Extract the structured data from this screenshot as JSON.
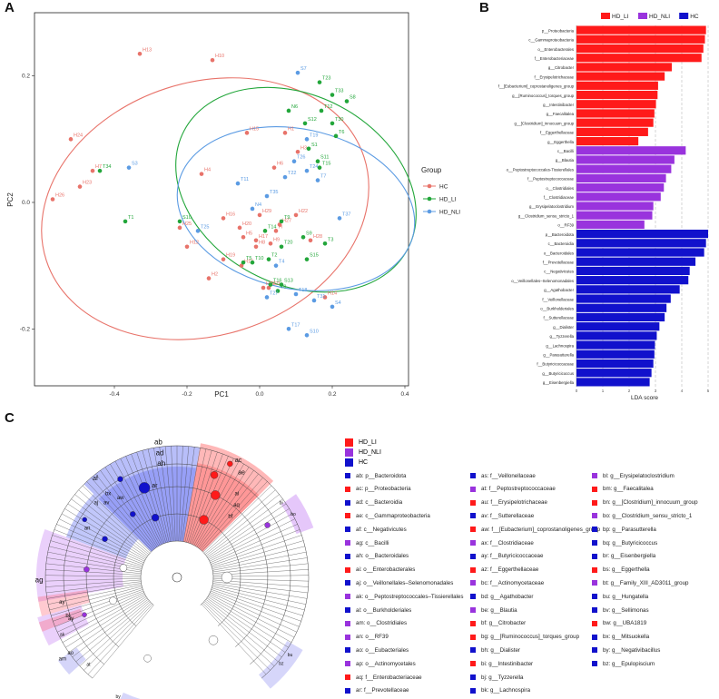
{
  "panels": {
    "a": "A",
    "b": "B",
    "c": "C"
  },
  "colors": {
    "HC": "#e8736a",
    "HD_LI": "#22a63a",
    "HD_NLI": "#5b9be3",
    "bar_LI": "#ff1a1a",
    "bar_NLI": "#9933dd",
    "bar_HC": "#1111cc"
  },
  "pca": {
    "xlabel": "PC1",
    "ylabel": "PC2",
    "xticks": [
      "-0.4",
      "-0.2",
      "0.0",
      "0.2",
      "0.4"
    ],
    "yticks": [
      "-0.2",
      "0.0",
      "0.2"
    ],
    "legend_title": "Group",
    "legend_items": [
      "HC",
      "HD_LI",
      "HD_NLI"
    ]
  },
  "chart_data": [
    {
      "type": "scatter",
      "title": "",
      "xlabel": "PC1",
      "ylabel": "PC2",
      "xlim": [
        -0.62,
        0.41
      ],
      "ylim": [
        -0.29,
        0.3
      ],
      "series": [
        {
          "name": "HC",
          "points": [
            {
              "label": "H13",
              "x": -0.33,
              "y": 0.235
            },
            {
              "label": "H10",
              "x": -0.13,
              "y": 0.225
            },
            {
              "label": "H24",
              "x": -0.52,
              "y": 0.1
            },
            {
              "label": "H7",
              "x": -0.46,
              "y": 0.05
            },
            {
              "label": "H26",
              "x": -0.57,
              "y": 0.005
            },
            {
              "label": "H23",
              "x": -0.495,
              "y": 0.025
            },
            {
              "label": "H4",
              "x": -0.16,
              "y": 0.045
            },
            {
              "label": "H15",
              "x": -0.035,
              "y": 0.11
            },
            {
              "label": "H1",
              "x": 0.07,
              "y": 0.11
            },
            {
              "label": "H3",
              "x": 0.105,
              "y": 0.08
            },
            {
              "label": "H6",
              "x": 0.04,
              "y": 0.055
            },
            {
              "label": "H25",
              "x": -0.22,
              "y": -0.04
            },
            {
              "label": "H12",
              "x": -0.2,
              "y": -0.07
            },
            {
              "label": "H19",
              "x": -0.1,
              "y": -0.09
            },
            {
              "label": "H16",
              "x": -0.1,
              "y": -0.025
            },
            {
              "label": "H20",
              "x": -0.055,
              "y": -0.04
            },
            {
              "label": "H5",
              "x": -0.045,
              "y": -0.055
            },
            {
              "label": "H17",
              "x": -0.01,
              "y": -0.06
            },
            {
              "label": "H29",
              "x": 0.0,
              "y": -0.02
            },
            {
              "label": "H27",
              "x": 0.055,
              "y": -0.035
            },
            {
              "label": "H8",
              "x": -0.01,
              "y": -0.07
            },
            {
              "label": "H9",
              "x": 0.03,
              "y": -0.065
            },
            {
              "label": "H22",
              "x": 0.1,
              "y": -0.02
            },
            {
              "label": "H28",
              "x": 0.14,
              "y": -0.06
            },
            {
              "label": "H18",
              "x": -0.05,
              "y": -0.1
            },
            {
              "label": "H2",
              "x": -0.14,
              "y": -0.12
            },
            {
              "label": "H11",
              "x": 0.01,
              "y": -0.135
            },
            {
              "label": "H21",
              "x": 0.025,
              "y": -0.135
            },
            {
              "label": "H14",
              "x": 0.18,
              "y": -0.15
            },
            {
              "label": "H",
              "x": 0.045,
              "y": -0.045
            }
          ]
        },
        {
          "name": "HD_LI",
          "points": [
            {
              "label": "T23",
              "x": 0.165,
              "y": 0.19
            },
            {
              "label": "T33",
              "x": 0.2,
              "y": 0.17
            },
            {
              "label": "S8",
              "x": 0.24,
              "y": 0.16
            },
            {
              "label": "N6",
              "x": 0.08,
              "y": 0.145
            },
            {
              "label": "T12",
              "x": 0.17,
              "y": 0.145
            },
            {
              "label": "S12",
              "x": 0.125,
              "y": 0.125
            },
            {
              "label": "T30",
              "x": 0.2,
              "y": 0.125
            },
            {
              "label": "T6",
              "x": 0.21,
              "y": 0.105
            },
            {
              "label": "S1",
              "x": 0.135,
              "y": 0.085
            },
            {
              "label": "S11",
              "x": 0.16,
              "y": 0.065
            },
            {
              "label": "T15",
              "x": 0.165,
              "y": 0.055
            },
            {
              "label": "T34",
              "x": -0.44,
              "y": 0.05
            },
            {
              "label": "T1",
              "x": -0.37,
              "y": -0.03
            },
            {
              "label": "S10",
              "x": -0.22,
              "y": -0.03
            },
            {
              "label": "T14",
              "x": 0.015,
              "y": -0.045
            },
            {
              "label": "T9",
              "x": 0.06,
              "y": -0.03
            },
            {
              "label": "T20",
              "x": 0.06,
              "y": -0.07
            },
            {
              "label": "S9",
              "x": 0.12,
              "y": -0.055
            },
            {
              "label": "T3",
              "x": 0.18,
              "y": -0.065
            },
            {
              "label": "T10",
              "x": -0.02,
              "y": -0.095
            },
            {
              "label": "T2",
              "x": 0.025,
              "y": -0.09
            },
            {
              "label": "S15",
              "x": 0.13,
              "y": -0.09
            },
            {
              "label": "T16",
              "x": 0.03,
              "y": -0.13
            },
            {
              "label": "S13",
              "x": 0.06,
              "y": -0.13
            },
            {
              "label": "T8",
              "x": 0.05,
              "y": -0.14
            },
            {
              "label": "T5",
              "x": -0.045,
              "y": -0.095
            }
          ]
        },
        {
          "name": "HD_NLI",
          "points": [
            {
              "label": "S7",
              "x": 0.105,
              "y": 0.205
            },
            {
              "label": "T19",
              "x": 0.13,
              "y": 0.1
            },
            {
              "label": "S3",
              "x": -0.36,
              "y": 0.055
            },
            {
              "label": "T26",
              "x": 0.095,
              "y": 0.065
            },
            {
              "label": "T24",
              "x": 0.13,
              "y": 0.05
            },
            {
              "label": "T22",
              "x": 0.07,
              "y": 0.04
            },
            {
              "label": "T7",
              "x": 0.16,
              "y": 0.035
            },
            {
              "label": "T11",
              "x": -0.06,
              "y": 0.03
            },
            {
              "label": "N4",
              "x": -0.02,
              "y": -0.01
            },
            {
              "label": "T35",
              "x": 0.02,
              "y": 0.01
            },
            {
              "label": "T37",
              "x": 0.22,
              "y": -0.025
            },
            {
              "label": "T25",
              "x": -0.17,
              "y": -0.045
            },
            {
              "label": "T4",
              "x": 0.045,
              "y": -0.1
            },
            {
              "label": "T27",
              "x": 0.02,
              "y": -0.15
            },
            {
              "label": "T18",
              "x": 0.1,
              "y": -0.145
            },
            {
              "label": "T31",
              "x": 0.15,
              "y": -0.155
            },
            {
              "label": "S4",
              "x": 0.2,
              "y": -0.165
            },
            {
              "label": "T17",
              "x": 0.08,
              "y": -0.2
            },
            {
              "label": "S10",
              "x": 0.13,
              "y": -0.21
            }
          ]
        }
      ]
    },
    {
      "type": "bar",
      "orientation": "horizontal",
      "title": "",
      "xlabel": "LDA score",
      "xlim": [
        0,
        5
      ],
      "xticks": [
        "0",
        "1",
        "2",
        "3",
        "4",
        "5"
      ],
      "legend": [
        "HD_LI",
        "HD_NLI",
        "HC"
      ],
      "categories": [
        "p__Proteobacteria",
        "c__Gammaproteobacteria",
        "o__Enterobacterales",
        "f__Enterobacteriaceae",
        "g__Citrobacter",
        "f__Erysipelotrichaceae",
        "f__[Eubacterium]_coprostanoligenes_group",
        "g__[Ruminococcus]_torques_group",
        "g__Intestinibacter",
        "g__Faecalitalea",
        "g__[Clostridium]_innocuum_group",
        "f__Eggerthellaceae",
        "g__Eggerthella",
        "c__Bacilli",
        "g__Blautia",
        "o__Peptostreptococcales-Tissierellales",
        "f__Peptostreptococcaceae",
        "o__Clostridiales",
        "f__Clostridiaceae",
        "g__Erysipelatoclostridium",
        "g__Clostridium_sensu_stricto_1",
        "o__RF39",
        "p__Bacteroidota",
        "c__Bacteroidia",
        "o__Bacteroidales",
        "f__Prevotellaceae",
        "c__Negativicutes",
        "o__Veillonellales–Selenomonadales",
        "g__Agathobacter",
        "f__Veillonellaceae",
        "o__Burkholderiales",
        "f__Sutterellaceae",
        "g__Dialister",
        "g__Tyzzerella",
        "g__Lachnospira",
        "g__Parasutterella",
        "f__Butyricicoccaceae",
        "g__Butyricicoccus",
        "g__Eisenbergiella"
      ],
      "groups": [
        "HD_LI",
        "HD_LI",
        "HD_LI",
        "HD_LI",
        "HD_LI",
        "HD_LI",
        "HD_LI",
        "HD_LI",
        "HD_LI",
        "HD_LI",
        "HD_LI",
        "HD_LI",
        "HD_LI",
        "HD_NLI",
        "HD_NLI",
        "HD_NLI",
        "HD_NLI",
        "HD_NLI",
        "HD_NLI",
        "HD_NLI",
        "HD_NLI",
        "HD_NLI",
        "HC",
        "HC",
        "HC",
        "HC",
        "HC",
        "HC",
        "HC",
        "HC",
        "HC",
        "HC",
        "HC",
        "HC",
        "HC",
        "HC",
        "HC",
        "HC",
        "HC"
      ],
      "values": [
        4.92,
        4.88,
        4.82,
        4.75,
        3.62,
        3.35,
        3.1,
        3.08,
        3.02,
        2.96,
        2.92,
        2.72,
        2.35,
        4.15,
        3.72,
        3.6,
        3.4,
        3.32,
        3.2,
        2.92,
        2.88,
        2.58,
        5.0,
        4.92,
        4.85,
        4.52,
        4.3,
        4.25,
        3.92,
        3.58,
        3.42,
        3.35,
        3.15,
        3.05,
        2.98,
        2.96,
        2.92,
        2.85,
        2.78
      ]
    }
  ],
  "cladogram": {
    "legend": [
      "HD_LI",
      "HD_NLI",
      "HC"
    ],
    "ring_labels": [
      "ab",
      "ad",
      "ah",
      "ac",
      "ae",
      "ai",
      "aq",
      "bf",
      "af",
      "aj",
      "av",
      "aw",
      "ar",
      "bi",
      "bo",
      "an",
      "bx",
      "ag",
      "ay",
      "bi",
      "ay",
      "am",
      "ao",
      "ak",
      "at",
      "bz",
      "bu",
      "bv",
      "bw",
      "by"
    ],
    "items": [
      {
        "code": "ab",
        "name": "p__Bacteroidota",
        "group": "HC"
      },
      {
        "code": "ac",
        "name": "p__Proteobacteria",
        "group": "HD_LI"
      },
      {
        "code": "ad",
        "name": "c__Bacteroidia",
        "group": "HC"
      },
      {
        "code": "ae",
        "name": "c__Gammaproteobacteria",
        "group": "HD_LI"
      },
      {
        "code": "af",
        "name": "c__Negativicutes",
        "group": "HC"
      },
      {
        "code": "ag",
        "name": "c__Bacilli",
        "group": "HD_NLI"
      },
      {
        "code": "ah",
        "name": "o__Bacteroidales",
        "group": "HC"
      },
      {
        "code": "ai",
        "name": "o__Enterobacterales",
        "group": "HD_LI"
      },
      {
        "code": "aj",
        "name": "o__Veillonellales–Selenomonadales",
        "group": "HC"
      },
      {
        "code": "ak",
        "name": "o__Peptostreptococcales–Tissierellales",
        "group": "HD_NLI"
      },
      {
        "code": "al",
        "name": "o__Burkholderiales",
        "group": "HC"
      },
      {
        "code": "am",
        "name": "o__Clostridiales",
        "group": "HD_NLI"
      },
      {
        "code": "an",
        "name": "o__RF39",
        "group": "HD_NLI"
      },
      {
        "code": "ao",
        "name": "o__Eubacteriales",
        "group": "HC"
      },
      {
        "code": "ap",
        "name": "o__Actinomycetales",
        "group": "HD_NLI"
      },
      {
        "code": "aq",
        "name": "f__Enterobacteriaceae",
        "group": "HD_LI"
      },
      {
        "code": "ar",
        "name": "f__Prevotellaceae",
        "group": "HC"
      },
      {
        "code": "as",
        "name": "f__Veillonellaceae",
        "group": "HC"
      },
      {
        "code": "at",
        "name": "f__Peptostreptococcaceae",
        "group": "HD_NLI"
      },
      {
        "code": "au",
        "name": "f__Erysipelotrichaceae",
        "group": "HD_LI"
      },
      {
        "code": "av",
        "name": "f__Sutterellaceae",
        "group": "HC"
      },
      {
        "code": "aw",
        "name": "f__[Eubacterium]_coprostanoligenes_group",
        "group": "HD_LI"
      },
      {
        "code": "ax",
        "name": "f__Clostridiaceae",
        "group": "HD_NLI"
      },
      {
        "code": "ay",
        "name": "f__Butyricicoccaceae",
        "group": "HC"
      },
      {
        "code": "az",
        "name": "f__Eggerthellaceae",
        "group": "HD_LI"
      },
      {
        "code": "bc",
        "name": "f__Actinomycetaceae",
        "group": "HD_NLI"
      },
      {
        "code": "bd",
        "name": "g__Agathobacter",
        "group": "HC"
      },
      {
        "code": "be",
        "name": "g__Blautia",
        "group": "HD_NLI"
      },
      {
        "code": "bf",
        "name": "g__Citrobacter",
        "group": "HD_LI"
      },
      {
        "code": "bg",
        "name": "g__[Ruminococcus]_torques_group",
        "group": "HD_LI"
      },
      {
        "code": "bh",
        "name": "g__Dialister",
        "group": "HC"
      },
      {
        "code": "bi",
        "name": "g__Intestinibacter",
        "group": "HD_LI"
      },
      {
        "code": "bj",
        "name": "g__Tyzzerella",
        "group": "HC"
      },
      {
        "code": "bk",
        "name": "g__Lachnospira",
        "group": "HC"
      },
      {
        "code": "bl",
        "name": "g__Erysipelatoclostridium",
        "group": "HD_NLI"
      },
      {
        "code": "bm",
        "name": "g__Faecalitalea",
        "group": "HD_LI"
      },
      {
        "code": "bn",
        "name": "g__[Clostridium]_innocuum_group",
        "group": "HD_LI"
      },
      {
        "code": "bo",
        "name": "g__Clostridium_sensu_stricto_1",
        "group": "HD_NLI"
      },
      {
        "code": "bp",
        "name": "g__Parasutterella",
        "group": "HC"
      },
      {
        "code": "bq",
        "name": "g__Butyricicoccus",
        "group": "HC"
      },
      {
        "code": "br",
        "name": "g__Eisenbergiella",
        "group": "HC"
      },
      {
        "code": "bs",
        "name": "g__Eggerthella",
        "group": "HD_LI"
      },
      {
        "code": "bt",
        "name": "g__Family_XIII_AD3011_group",
        "group": "HD_NLI"
      },
      {
        "code": "bu",
        "name": "g__Hungatella",
        "group": "HC"
      },
      {
        "code": "bv",
        "name": "g__Sellimonas",
        "group": "HC"
      },
      {
        "code": "bw",
        "name": "g__UBA1819",
        "group": "HD_LI"
      },
      {
        "code": "bx",
        "name": "g__Mitsuokella",
        "group": "HC"
      },
      {
        "code": "by",
        "name": "g__Negativibacillus",
        "group": "HC"
      },
      {
        "code": "bz",
        "name": "g__Epulopiscium",
        "group": "HC"
      }
    ]
  }
}
